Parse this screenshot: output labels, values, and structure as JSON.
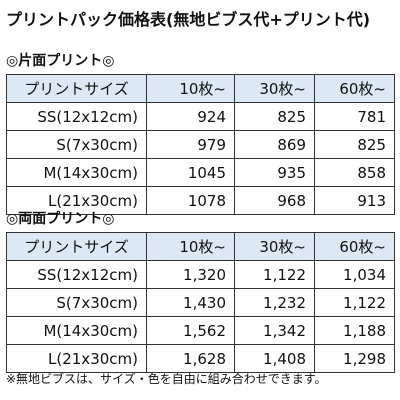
{
  "title": "プリントパック価格表(無地ビブス代+プリント代)",
  "sections": [
    {
      "heading": "◎片面プリント◎",
      "table": {
        "header": [
          "プリントサイズ",
          "10枚~",
          "30枚~",
          "60枚~"
        ],
        "rows": [
          [
            "SS(12x12cm)",
            "924",
            "825",
            "781"
          ],
          [
            "S(7x30cm)",
            "979",
            "869",
            "825"
          ],
          [
            "M(14x30cm)",
            "1045",
            "935",
            "858"
          ],
          [
            "L(21x30cm)",
            "1078",
            "968",
            "913"
          ]
        ]
      }
    },
    {
      "heading": "◎両面プリント◎",
      "table": {
        "header": [
          "プリントサイズ",
          "10枚~",
          "30枚~",
          "60枚~"
        ],
        "rows": [
          [
            "SS(12x12cm)",
            "1,320",
            "1,122",
            "1,034"
          ],
          [
            "S(7x30cm)",
            "1,430",
            "1,232",
            "1,122"
          ],
          [
            "M(14x30cm)",
            "1,562",
            "1,342",
            "1,188"
          ],
          [
            "L(21x30cm)",
            "1,628",
            "1,408",
            "1,298"
          ]
        ]
      }
    }
  ],
  "footnote": "※無地ビブスは、サイズ・色を自由に組み合わせできます。"
}
